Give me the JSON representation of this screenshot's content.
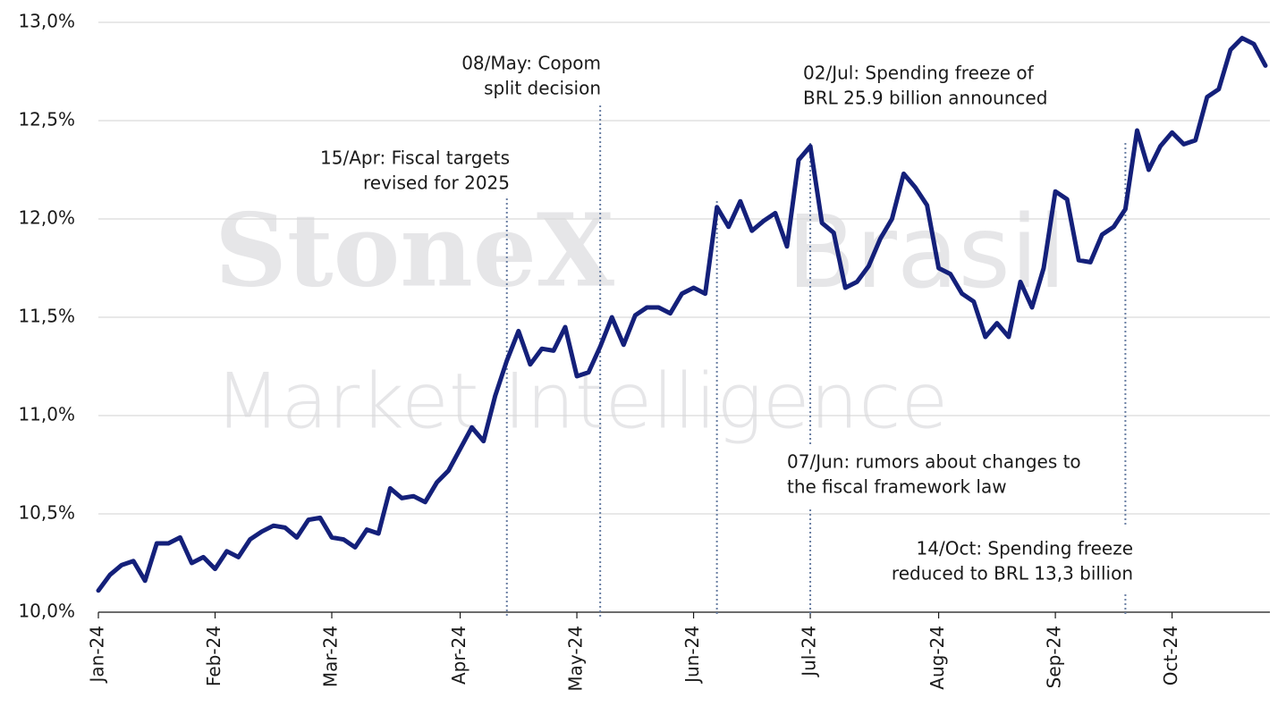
{
  "chart_data": {
    "type": "line",
    "watermark": [
      "StoneX",
      "Brasil",
      "Market Intelligence"
    ],
    "categories": [
      "Jan-24",
      null,
      null,
      null,
      null,
      null,
      null,
      null,
      null,
      null,
      "Feb-24",
      null,
      null,
      null,
      null,
      null,
      null,
      null,
      null,
      null,
      "Mar-24",
      null,
      null,
      null,
      null,
      null,
      null,
      null,
      null,
      null,
      null,
      "Apr-24",
      null,
      null,
      null,
      null,
      null,
      null,
      null,
      null,
      null,
      "May-24",
      null,
      null,
      null,
      null,
      null,
      null,
      null,
      null,
      null,
      "Jun-24",
      null,
      null,
      null,
      null,
      null,
      null,
      null,
      null,
      null,
      "Jul-24",
      null,
      null,
      null,
      null,
      null,
      null,
      null,
      null,
      null,
      null,
      "Aug-24",
      null,
      null,
      null,
      null,
      null,
      null,
      null,
      null,
      null,
      "Sep-24",
      null,
      null,
      null,
      null,
      null,
      null,
      null,
      null,
      null,
      "Oct-24",
      null,
      null,
      null,
      null,
      null,
      null,
      null,
      null
    ],
    "series": [
      {
        "color": "#14207a",
        "values": [
          10.11,
          10.19,
          10.24,
          10.26,
          10.16,
          10.35,
          10.35,
          10.38,
          10.25,
          10.28,
          10.22,
          10.31,
          10.28,
          10.37,
          10.41,
          10.44,
          10.43,
          10.38,
          10.47,
          10.48,
          10.38,
          10.37,
          10.33,
          10.42,
          10.4,
          10.63,
          10.58,
          10.59,
          10.56,
          10.66,
          10.72,
          10.83,
          10.94,
          10.87,
          11.1,
          11.28,
          11.43,
          11.26,
          11.34,
          11.33,
          11.45,
          11.2,
          11.22,
          11.35,
          11.5,
          11.36,
          11.51,
          11.55,
          11.55,
          11.52,
          11.62,
          11.65,
          11.62,
          12.06,
          11.96,
          12.09,
          11.94,
          11.99,
          12.03,
          11.86,
          12.3,
          12.37,
          11.98,
          11.93,
          11.65,
          11.68,
          11.76,
          11.9,
          12.0,
          12.23,
          12.16,
          12.07,
          11.75,
          11.72,
          11.62,
          11.58,
          11.4,
          11.47,
          11.4,
          11.68,
          11.55,
          11.75,
          12.14,
          12.1,
          11.79,
          11.78,
          11.92,
          11.96,
          12.05,
          12.45,
          12.25,
          12.37,
          12.44,
          12.38,
          12.4,
          12.62,
          12.66,
          12.86,
          12.92,
          12.89,
          12.78
        ]
      }
    ],
    "ylim": [
      10,
      13
    ],
    "yticks": [
      {
        "value": 10,
        "label": "10,0%"
      },
      {
        "value": 10.5,
        "label": "10,5%"
      },
      {
        "value": 11,
        "label": "11,0%"
      },
      {
        "value": 11.5,
        "label": "11,5%"
      },
      {
        "value": 12,
        "label": "12,0%"
      },
      {
        "value": 12.5,
        "label": "12,5%"
      },
      {
        "value": 13,
        "label": "13,0%"
      }
    ],
    "grid": true,
    "annotations": [
      {
        "index": 35,
        "text": [
          "15/Apr: Fiscal targets",
          "revised for 2025"
        ]
      },
      {
        "index": 43,
        "text": [
          "08/May: Copom",
          "split decision"
        ]
      },
      {
        "index": 53,
        "text": [
          "07/Jun: rumors about changes to",
          "the fiscal framework law"
        ]
      },
      {
        "index": 61,
        "text": [
          "02/Jul: Spending freeze of",
          "BRL 25.9 billion announced"
        ]
      },
      {
        "index": 88,
        "text": [
          "14/Oct: Spending freeze",
          "reduced to BRL 13,3 billion"
        ]
      }
    ]
  }
}
